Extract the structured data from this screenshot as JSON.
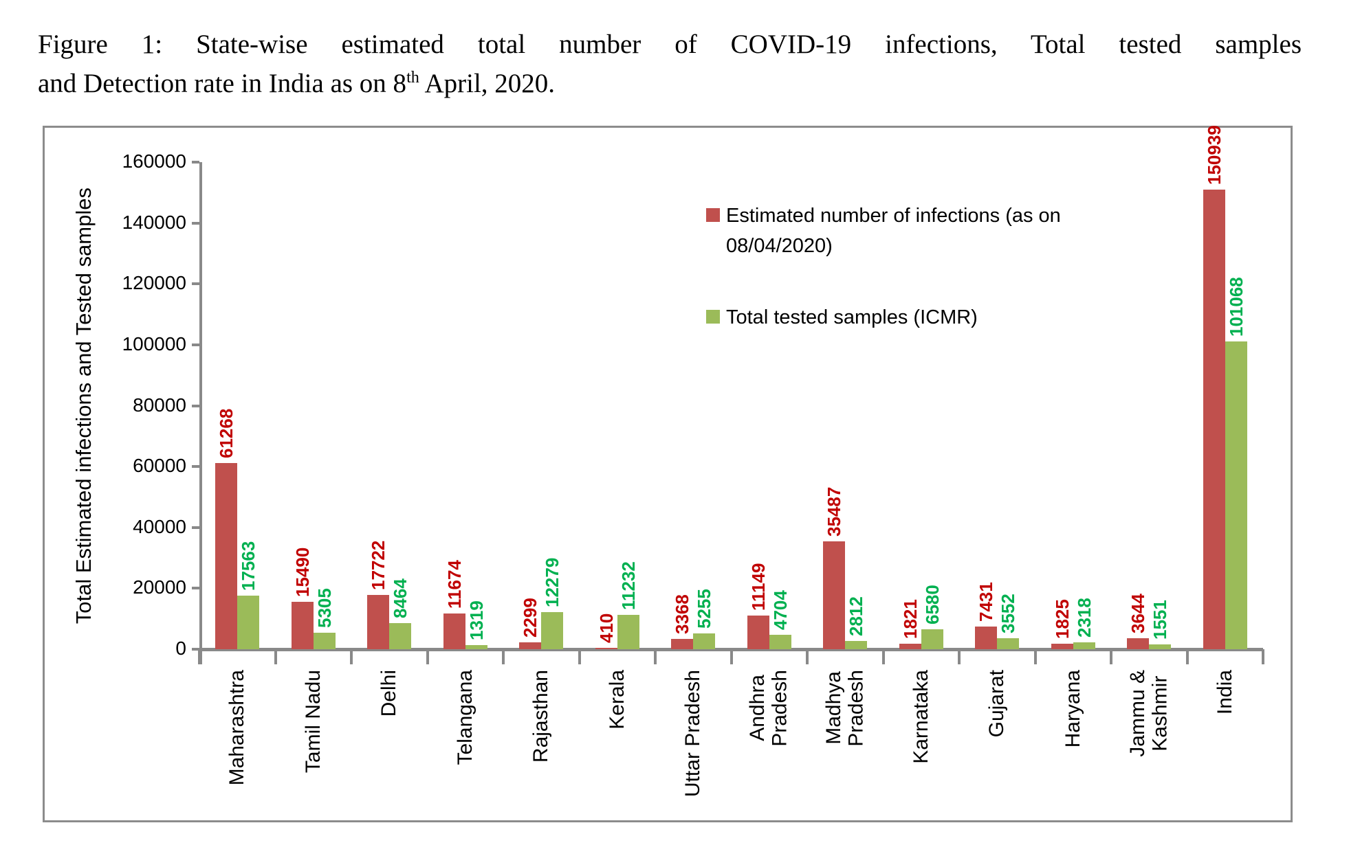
{
  "figure_caption": {
    "line1": "Figure 1: State-wise estimated total number of COVID-19 infections, Total tested samples",
    "line2_prefix": "and Detection rate in India as on 8",
    "line2_superscript": "th",
    "line2_suffix": " April, 2020."
  },
  "chart_data": {
    "type": "bar",
    "title": "",
    "xlabel": "",
    "ylabel": "Total Estimated infections and Tested samples",
    "ylim": [
      0,
      160000
    ],
    "ytick_interval": 20000,
    "ytick_labels": [
      "0",
      "20000",
      "40000",
      "60000",
      "80000",
      "100000",
      "120000",
      "140000",
      "160000"
    ],
    "grid": false,
    "legend_position": "inside-top-right",
    "categories": [
      "Maharashtra",
      "Tamil Nadu",
      "Delhi",
      "Telangana",
      "Rajasthan",
      "Kerala",
      "Uttar Pradesh",
      "Andhra\nPradesh",
      "Madhya\nPradesh",
      "Karnataka",
      "Gujarat",
      "Haryana",
      "Jammu &\nKashmir",
      "India"
    ],
    "series": [
      {
        "name": "Estimated number of infections (as on 08/04/2020)",
        "legend_label": "Estimated number of infections (as on\n08/04/2020)",
        "bar_color": "#C0504D",
        "label_color": "#C00000",
        "values": [
          61268,
          15490,
          17722,
          11674,
          2299,
          410,
          3368,
          11149,
          35487,
          1821,
          7431,
          1825,
          3644,
          150939
        ]
      },
      {
        "name": "Total tested samples (ICMR)",
        "legend_label": "Total tested samples (ICMR)",
        "bar_color": "#9BBB59",
        "label_color": "#00B050",
        "values": [
          17563,
          5305,
          8464,
          1319,
          12279,
          11232,
          5255,
          4704,
          2812,
          6580,
          3552,
          2318,
          1551,
          101068
        ]
      }
    ]
  },
  "colors": {
    "axis": "#898989",
    "frame_border": "#8C8C8C",
    "background": "#FFFFFF",
    "caption_text": "#000000"
  }
}
